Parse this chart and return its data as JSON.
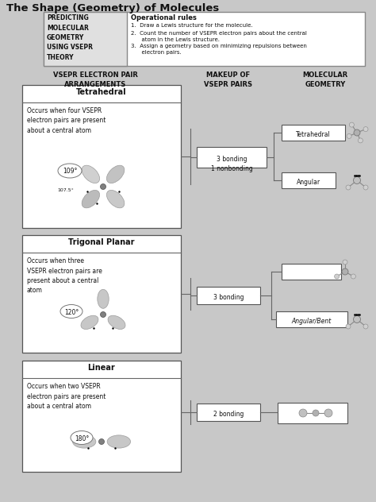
{
  "title": "The Shape (Geometry) of Molecules",
  "bg_color": "#c8c8c8",
  "box_bg": "#ffffff",
  "text_color": "#111111",
  "predicting_title": "PREDICTING\nMOLECULAR\nGEOMETRY\nUSING VSEPR\nTHEORY",
  "operational_title": "Operational rules",
  "op_rule1": "1.  Draw a Lewis structure for the molecule.",
  "op_rule2": "2.  Count the number of VSEPR electron pairs about the central\n      atom in the Lewis structure.",
  "op_rule3": "3.  Assign a geometry based on minimizing repulsions between\n      electron pairs.",
  "col1_header": "VSEPR ELECTRON PAIR\nARRANGEMENTS",
  "col2_header": "MAKEUP OF\nVSEPR PAIRS",
  "col3_header": "MOLECULAR\nGEOMETRY",
  "sec1_name": "Tetrahedral",
  "sec1_desc": "Occurs when four VSEPR\nelectron pairs are present\nabout a central atom",
  "sec1_angle": "109°",
  "sec1_angle2": "107.5°",
  "sec1_mid": "3 bonding\n1 nonbonding",
  "sec1_geo1": "Tetrahedral",
  "sec1_geo2": "Angular",
  "sec2_name": "Trigonal Planar",
  "sec2_desc": "Occurs when three\nVSEPR electron pairs are\npresent about a central\natom",
  "sec2_angle": "120°",
  "sec2_mid": "3 bonding",
  "sec2_geo1": "Angular/Bent",
  "sec3_name": "Linear",
  "sec3_desc": "Occurs when two VSEPR\nelectron pairs are present\nabout a central atom",
  "sec3_angle": "180°",
  "sec3_mid": "2 bonding",
  "line_color": "#666666",
  "ec_color": "#555555"
}
